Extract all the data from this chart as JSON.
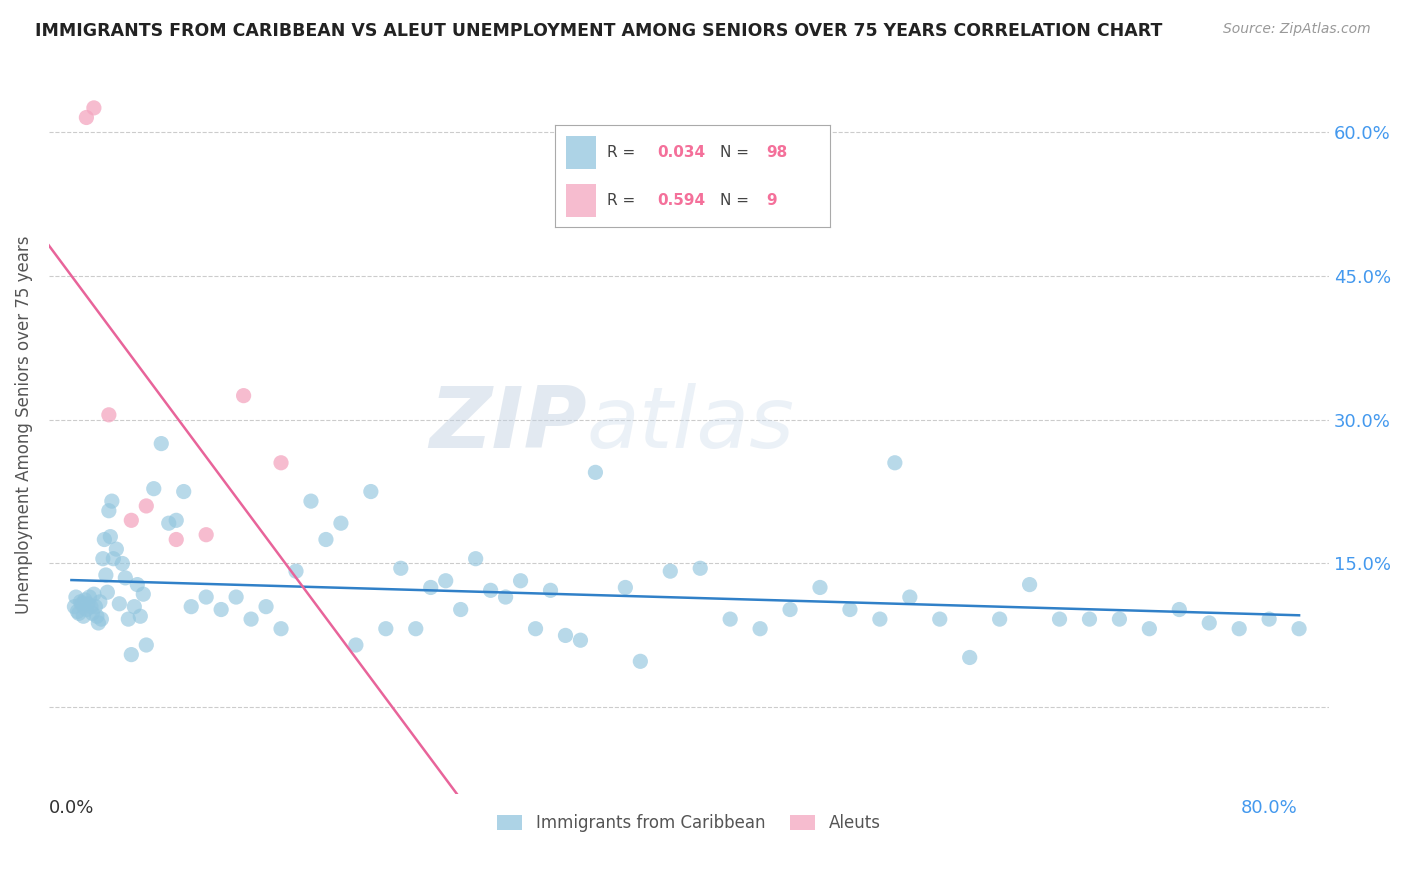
{
  "title": "IMMIGRANTS FROM CARIBBEAN VS ALEUT UNEMPLOYMENT AMONG SENIORS OVER 75 YEARS CORRELATION CHART",
  "source": "Source: ZipAtlas.com",
  "xlabel_label": "Immigrants from Caribbean",
  "ylabel_label": "Unemployment Among Seniors over 75 years",
  "xlim": [
    -0.015,
    0.84
  ],
  "ylim": [
    -0.09,
    0.68
  ],
  "caribbean_R": 0.034,
  "caribbean_N": 98,
  "aleut_R": 0.594,
  "aleut_N": 9,
  "caribbean_color": "#92c5de",
  "aleut_color": "#f4a6c0",
  "caribbean_line_color": "#3080c8",
  "aleut_line_color": "#e8649a",
  "legend_R_color": "#f4709a",
  "legend_N_color": "#f4709a",
  "y_tick_pos": [
    0.0,
    0.15,
    0.3,
    0.45,
    0.6
  ],
  "y_tick_labels": [
    "",
    "15.0%",
    "30.0%",
    "45.0%",
    "60.0%"
  ],
  "x_tick_pos": [
    0.0,
    0.8
  ],
  "x_tick_labels": [
    "0.0%",
    "80.0%"
  ],
  "grid_color": "#cccccc",
  "watermark_color": "#c8d8e8",
  "aleut_x": [
    0.01,
    0.015,
    0.025,
    0.04,
    0.05,
    0.07,
    0.09,
    0.115,
    0.14
  ],
  "aleut_y": [
    0.615,
    0.625,
    0.305,
    0.195,
    0.21,
    0.175,
    0.18,
    0.325,
    0.255
  ],
  "carib_x_dense": [
    0.002,
    0.003,
    0.004,
    0.005,
    0.006,
    0.007,
    0.008,
    0.009,
    0.01,
    0.011,
    0.012,
    0.013,
    0.014,
    0.015,
    0.016,
    0.017,
    0.018,
    0.019,
    0.02,
    0.021,
    0.022,
    0.023,
    0.024,
    0.025,
    0.026,
    0.027,
    0.028,
    0.03,
    0.032,
    0.034,
    0.036,
    0.038,
    0.04,
    0.042,
    0.044,
    0.046,
    0.048,
    0.05,
    0.055,
    0.06,
    0.065,
    0.07,
    0.075,
    0.08,
    0.09,
    0.1,
    0.11,
    0.12,
    0.13,
    0.14,
    0.15,
    0.16,
    0.17,
    0.18,
    0.19,
    0.2,
    0.21,
    0.22,
    0.23,
    0.24,
    0.25,
    0.26,
    0.27,
    0.28,
    0.29,
    0.3,
    0.31,
    0.32,
    0.33,
    0.34,
    0.35,
    0.37,
    0.38,
    0.4,
    0.42,
    0.44,
    0.46,
    0.48,
    0.5,
    0.52,
    0.54,
    0.55,
    0.56,
    0.58,
    0.6,
    0.62,
    0.64,
    0.66,
    0.68,
    0.7,
    0.72,
    0.74,
    0.76,
    0.78,
    0.8,
    0.82
  ],
  "carib_y_dense": [
    0.105,
    0.115,
    0.1,
    0.098,
    0.11,
    0.108,
    0.095,
    0.112,
    0.102,
    0.108,
    0.115,
    0.105,
    0.098,
    0.118,
    0.105,
    0.095,
    0.088,
    0.11,
    0.092,
    0.155,
    0.175,
    0.138,
    0.12,
    0.205,
    0.178,
    0.215,
    0.155,
    0.165,
    0.108,
    0.15,
    0.135,
    0.092,
    0.055,
    0.105,
    0.128,
    0.095,
    0.118,
    0.065,
    0.228,
    0.275,
    0.192,
    0.195,
    0.225,
    0.105,
    0.115,
    0.102,
    0.115,
    0.092,
    0.105,
    0.082,
    0.142,
    0.215,
    0.175,
    0.192,
    0.065,
    0.225,
    0.082,
    0.145,
    0.082,
    0.125,
    0.132,
    0.102,
    0.155,
    0.122,
    0.115,
    0.132,
    0.082,
    0.122,
    0.075,
    0.07,
    0.245,
    0.125,
    0.048,
    0.142,
    0.145,
    0.092,
    0.082,
    0.102,
    0.125,
    0.102,
    0.092,
    0.255,
    0.115,
    0.092,
    0.052,
    0.092,
    0.128,
    0.092,
    0.092,
    0.092,
    0.082,
    0.102,
    0.088,
    0.082,
    0.092,
    0.082
  ]
}
